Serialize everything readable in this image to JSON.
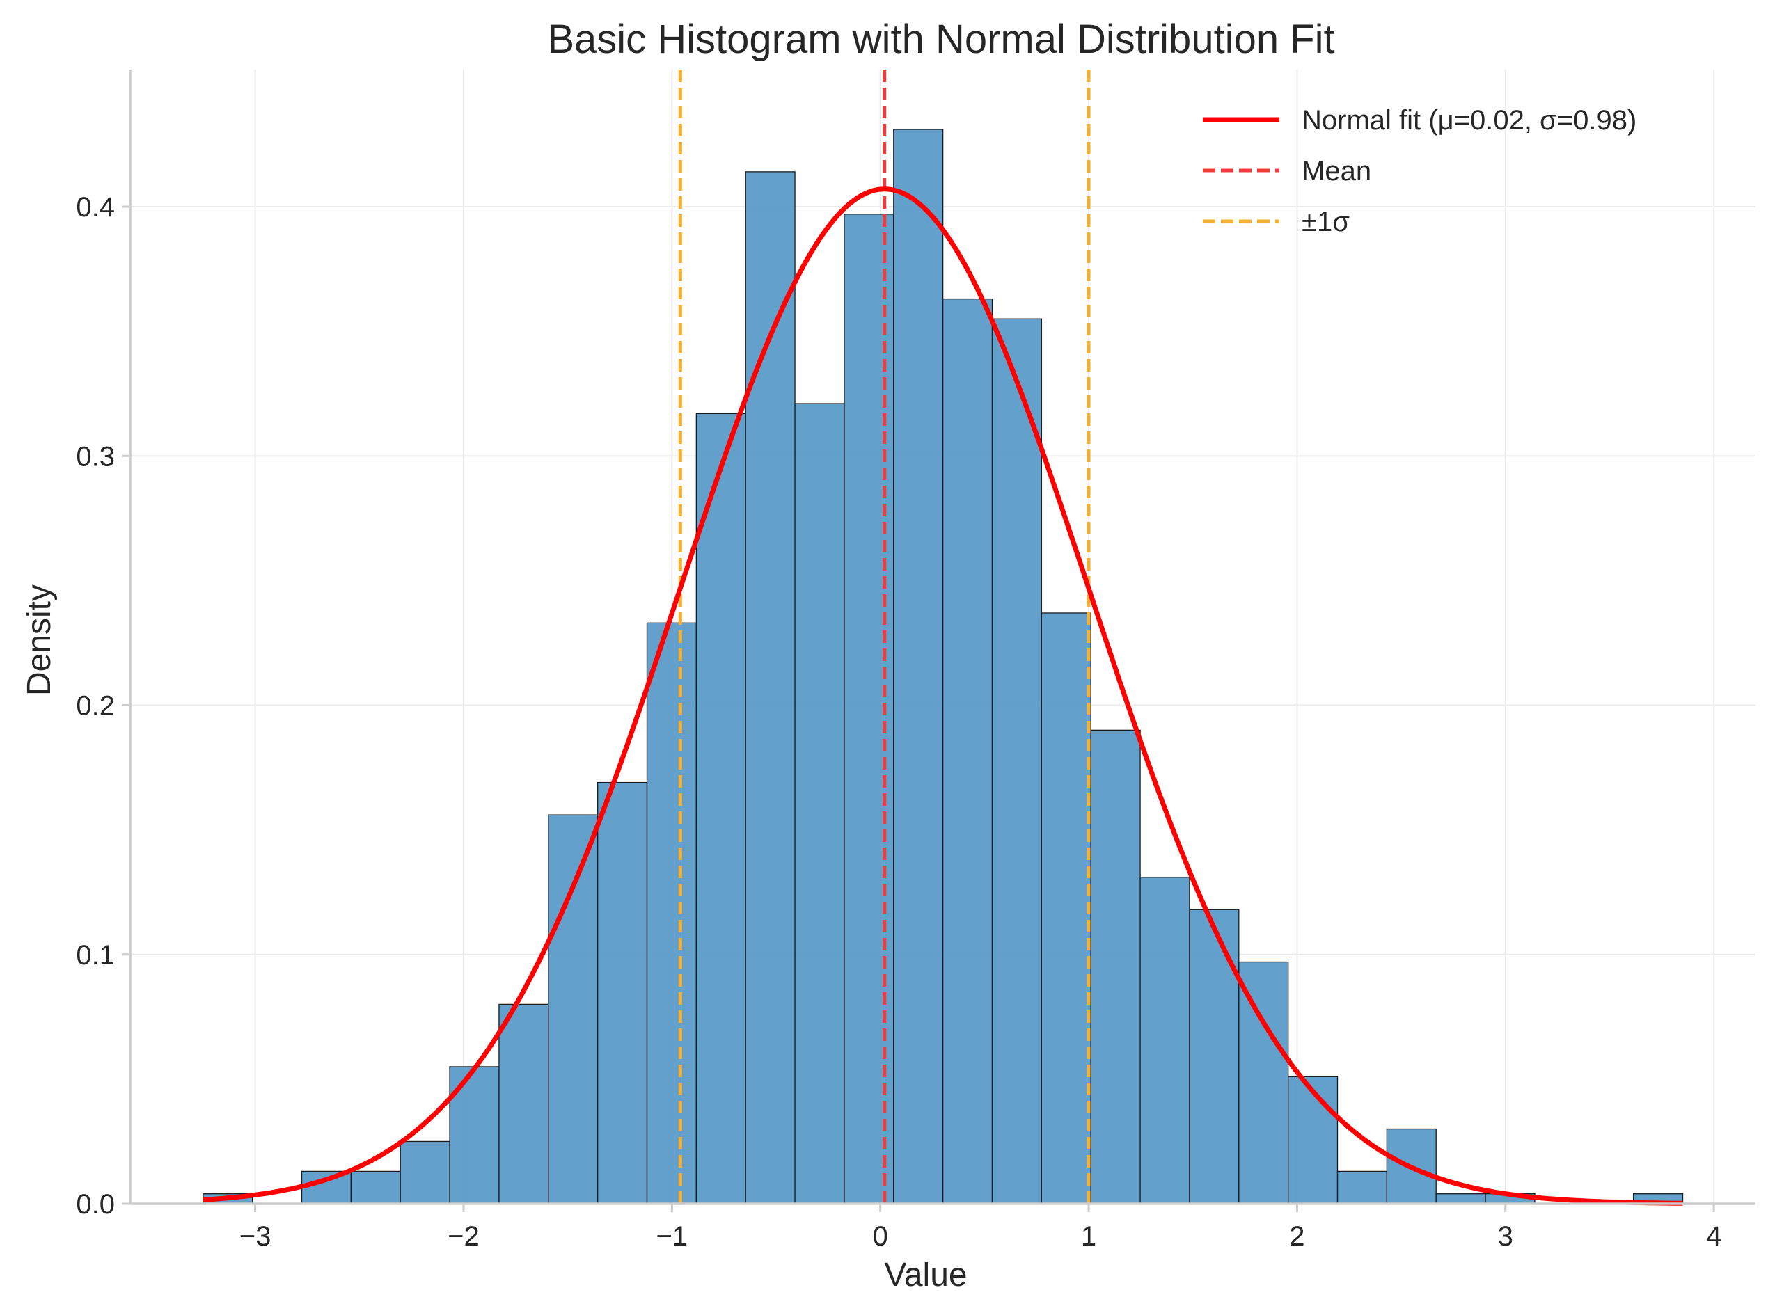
{
  "chart_data": {
    "type": "bar",
    "title": "Basic Histogram with Normal Distribution Fit",
    "xlabel": "Value",
    "ylabel": "Density",
    "xlim": [
      -3.6,
      4.2
    ],
    "ylim": [
      0,
      0.455
    ],
    "grid": true,
    "legend_placement": "top-right",
    "x_ticks": [
      -3,
      -2,
      -1,
      0,
      1,
      2,
      3,
      4
    ],
    "x_tick_labels": [
      "−3",
      "−2",
      "−1",
      "0",
      "1",
      "2",
      "3",
      "4"
    ],
    "y_ticks": [
      0.0,
      0.1,
      0.2,
      0.3,
      0.4
    ],
    "y_tick_labels": [
      "0.0",
      "0.1",
      "0.2",
      "0.3",
      "0.4"
    ],
    "bins": {
      "start": -3.25,
      "width": 0.2367,
      "density": [
        0.004,
        0.0,
        0.013,
        0.013,
        0.025,
        0.055,
        0.08,
        0.156,
        0.169,
        0.233,
        0.317,
        0.414,
        0.321,
        0.397,
        0.431,
        0.363,
        0.355,
        0.237,
        0.19,
        0.131,
        0.118,
        0.097,
        0.051,
        0.013,
        0.03,
        0.004,
        0.004,
        0.0,
        0.0,
        0.004
      ]
    },
    "normal_fit": {
      "mu": 0.02,
      "sigma": 0.98
    },
    "vertical_lines": {
      "mean": 0.02,
      "minus_sigma": -0.96,
      "plus_sigma": 1.0
    },
    "colors": {
      "bar_fill": "#5b9bc8",
      "bar_edge": "#1a1a1a",
      "fit_line": "#ff0000",
      "mean_line": "#f03c3c",
      "sigma_line": "#f5b032",
      "grid": "#ebebeb",
      "axis": "#cccccc"
    },
    "legend": [
      {
        "label": "Normal fit (μ=0.02, σ=0.98)",
        "style": "solid",
        "color": "#ff0000"
      },
      {
        "label": "Mean",
        "style": "dashed",
        "color": "#f03c3c"
      },
      {
        "label": "±1σ",
        "style": "dashed",
        "color": "#f5b032"
      }
    ]
  }
}
